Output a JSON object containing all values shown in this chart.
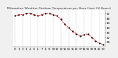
{
  "title": "Milwaukee Weather Outdoor Temperature per Hour (Last 24 Hours)",
  "hours": [
    0,
    1,
    2,
    3,
    4,
    5,
    6,
    7,
    8,
    9,
    10,
    11,
    12,
    13,
    14,
    15,
    16,
    17,
    18,
    19,
    20,
    21,
    22,
    23
  ],
  "temps": [
    50,
    51,
    51,
    52,
    52,
    51,
    50,
    51,
    52,
    52,
    51,
    50,
    47,
    43,
    40,
    37,
    35,
    33,
    34,
    35,
    32,
    29,
    27,
    26
  ],
  "line_color": "#ff0000",
  "marker_color": "#000000",
  "bg_color": "#f0f0f0",
  "plot_bg_color": "#ffffff",
  "grid_color": "#999999",
  "ylim": [
    24,
    55
  ],
  "yticks": [
    28,
    32,
    36,
    40,
    44,
    48,
    52
  ],
  "title_fontsize": 3.2,
  "tick_fontsize": 2.8,
  "title_color": "#333333"
}
